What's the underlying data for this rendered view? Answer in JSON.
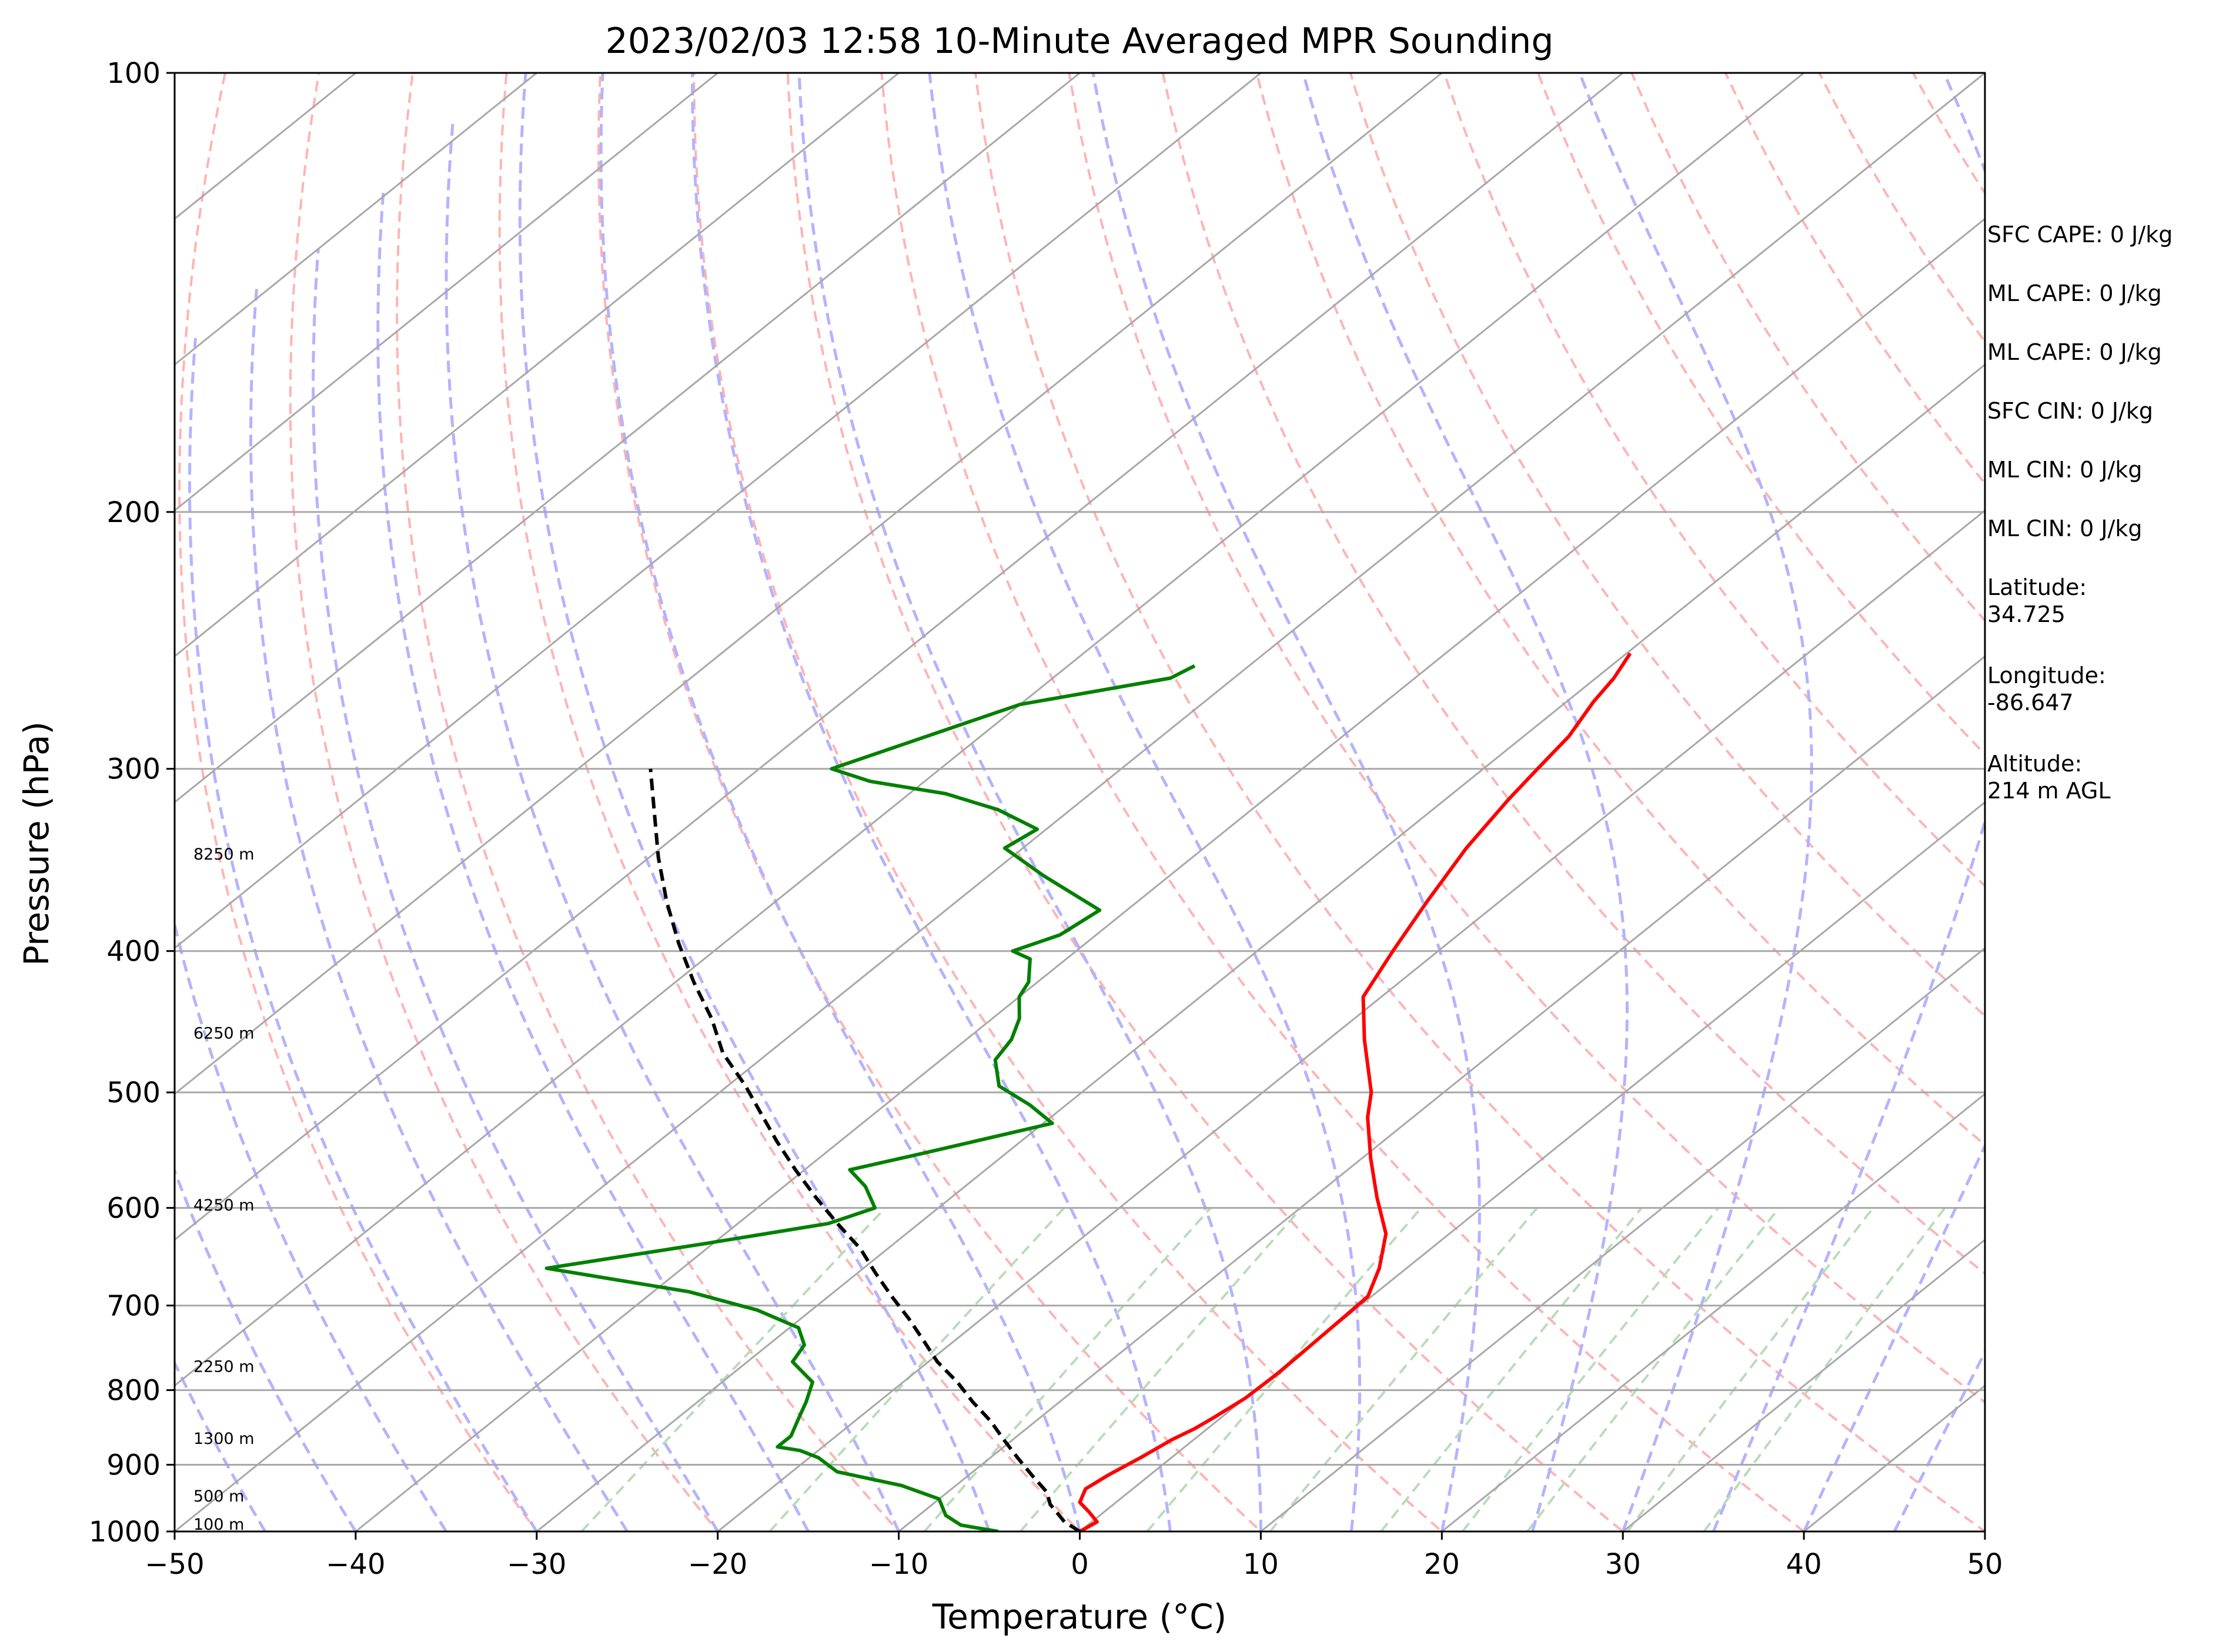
{
  "chart_data": {
    "type": "line",
    "title": "2023/02/03 12:58 10-Minute Averaged MPR Sounding",
    "xlabel": "Temperature (°C)",
    "ylabel": "Pressure (hPa)",
    "xlim": [
      -50,
      50
    ],
    "ylim": [
      1000,
      100
    ],
    "yscale": "log",
    "skew": "skew-T",
    "grid": true,
    "x_ticks": [
      -50,
      -40,
      -30,
      -20,
      -10,
      0,
      10,
      20,
      30,
      40,
      50
    ],
    "x_tick_labels": [
      "−50",
      "−40",
      "−30",
      "−20",
      "−10",
      "0",
      "10",
      "20",
      "30",
      "40",
      "50"
    ],
    "y_ticks": [
      1000,
      900,
      800,
      700,
      600,
      500,
      400,
      300,
      200,
      100
    ],
    "y_tick_labels": [
      "1000",
      "900",
      "800",
      "700",
      "600",
      "500",
      "400",
      "300",
      "200",
      "100"
    ],
    "colors": {
      "temperature": "#ff0000",
      "dewpoint": "#008000",
      "parcel": "#000000",
      "dry_adiabat": "#ffb3b3",
      "moist_adiabat": "#b3b3ff",
      "mixing_ratio": "#b8dcb8",
      "isotherm": "#a8a8a8"
    },
    "series": [
      {
        "key": "temperature",
        "style": "solid",
        "points": [
          [
            0.0,
            1000
          ],
          [
            0.3,
            985
          ],
          [
            -0.8,
            970
          ],
          [
            -2.0,
            955
          ],
          [
            -2.6,
            935
          ],
          [
            -2.3,
            915
          ],
          [
            -1.7,
            890
          ],
          [
            -1.2,
            865
          ],
          [
            -0.7,
            850
          ],
          [
            -0.4,
            835
          ],
          [
            0.0,
            810
          ],
          [
            0.1,
            780
          ],
          [
            0.0,
            745
          ],
          [
            -0.1,
            715
          ],
          [
            -0.2,
            690
          ],
          [
            -1.5,
            660
          ],
          [
            -3.5,
            625
          ],
          [
            -6.5,
            590
          ],
          [
            -9.5,
            555
          ],
          [
            -12.5,
            520
          ],
          [
            -14.0,
            500
          ],
          [
            -18.0,
            460
          ],
          [
            -21.0,
            430
          ],
          [
            -22.5,
            400
          ],
          [
            -24.0,
            370
          ],
          [
            -25.5,
            340
          ],
          [
            -26.5,
            315
          ],
          [
            -27.0,
            300
          ],
          [
            -27.5,
            285
          ],
          [
            -28.5,
            270
          ],
          [
            -29.0,
            260
          ],
          [
            -29.8,
            250
          ]
        ]
      },
      {
        "key": "dewpoint",
        "style": "solid",
        "points": [
          [
            -4.5,
            1000
          ],
          [
            -7.0,
            990
          ],
          [
            -8.5,
            975
          ],
          [
            -10.0,
            950
          ],
          [
            -13.0,
            930
          ],
          [
            -17.5,
            910
          ],
          [
            -19.5,
            890
          ],
          [
            -21.0,
            880
          ],
          [
            -22.5,
            875
          ],
          [
            -22.5,
            860
          ],
          [
            -23.0,
            845
          ],
          [
            -23.5,
            830
          ],
          [
            -24.0,
            815
          ],
          [
            -25.0,
            790
          ],
          [
            -27.5,
            765
          ],
          [
            -28.0,
            745
          ],
          [
            -29.5,
            725
          ],
          [
            -33.0,
            705
          ],
          [
            -38.0,
            685
          ],
          [
            -47.5,
            660
          ],
          [
            -40.5,
            635
          ],
          [
            -35.0,
            615
          ],
          [
            -33.5,
            600
          ],
          [
            -35.5,
            580
          ],
          [
            -37.5,
            565
          ],
          [
            -34.5,
            550
          ],
          [
            -29.5,
            525
          ],
          [
            -32.0,
            510
          ],
          [
            -35.0,
            495
          ],
          [
            -37.0,
            475
          ],
          [
            -37.5,
            460
          ],
          [
            -38.5,
            445
          ],
          [
            -40.0,
            430
          ],
          [
            -40.5,
            420
          ],
          [
            -42.0,
            405
          ],
          [
            -43.5,
            400
          ],
          [
            -42.0,
            390
          ],
          [
            -41.5,
            375
          ],
          [
            -47.0,
            355
          ],
          [
            -51.0,
            340
          ],
          [
            -50.5,
            330
          ],
          [
            -54.0,
            320
          ],
          [
            -58.0,
            312
          ],
          [
            -63.0,
            306
          ],
          [
            -66.0,
            300
          ],
          [
            -60.0,
            271
          ],
          [
            -53.5,
            260
          ],
          [
            -53.0,
            255
          ]
        ]
      },
      {
        "key": "parcel",
        "style": "dashed",
        "points": [
          [
            0.0,
            1000
          ],
          [
            -1.5,
            985
          ],
          [
            -2.6,
            970
          ],
          [
            -3.5,
            958
          ],
          [
            -4.5,
            940
          ],
          [
            -6.5,
            915
          ],
          [
            -8.5,
            890
          ],
          [
            -10.5,
            865
          ],
          [
            -12.5,
            840
          ],
          [
            -14.8,
            815
          ],
          [
            -17.0,
            790
          ],
          [
            -19.5,
            765
          ],
          [
            -21.7,
            740
          ],
          [
            -24.0,
            715
          ],
          [
            -26.5,
            690
          ],
          [
            -29.0,
            665
          ],
          [
            -31.5,
            640
          ],
          [
            -34.5,
            615
          ],
          [
            -37.5,
            590
          ],
          [
            -40.5,
            565
          ],
          [
            -43.5,
            540
          ],
          [
            -46.5,
            515
          ],
          [
            -49.0,
            495
          ],
          [
            -52.5,
            470
          ],
          [
            -55.5,
            445
          ],
          [
            -59.0,
            420
          ],
          [
            -62.5,
            395
          ],
          [
            -66.0,
            370
          ],
          [
            -69.5,
            345
          ],
          [
            -73.0,
            320
          ],
          [
            -76.0,
            300
          ]
        ]
      }
    ],
    "height_labels": [
      {
        "label": "100 m",
        "p": 988
      },
      {
        "label": "500 m",
        "p": 945
      },
      {
        "label": "1300 m",
        "p": 863
      },
      {
        "label": "2250 m",
        "p": 770
      },
      {
        "label": "4250 m",
        "p": 597
      },
      {
        "label": "6250 m",
        "p": 455
      },
      {
        "label": "8250 m",
        "p": 343
      }
    ],
    "annotations": [
      "SFC CAPE: 0 J/kg",
      "ML CAPE: 0 J/kg",
      "ML CAPE: 0 J/kg",
      "SFC CIN: 0 J/kg",
      "ML CIN: 0 J/kg",
      "ML CIN: 0 J/kg",
      "Latitude:\n34.725",
      "Longitude:\n-86.647",
      "Altitude:\n214 m AGL"
    ]
  }
}
